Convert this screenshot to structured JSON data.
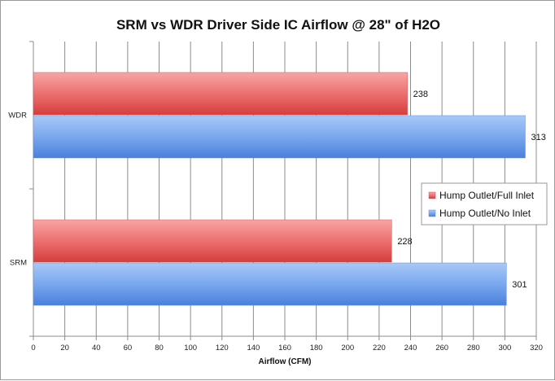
{
  "chart_data": {
    "type": "bar",
    "orientation": "horizontal",
    "title": "SRM vs WDR Driver Side IC Airflow @ 28\" of H2O",
    "xlabel": "Airflow (CFM)",
    "ylabel": "",
    "categories": [
      "WDR",
      "SRM"
    ],
    "series": [
      {
        "name": "Hump Outlet/Full Inlet",
        "values": [
          238,
          228
        ],
        "color": "#e05050"
      },
      {
        "name": "Hump Outlet/No Inlet",
        "values": [
          313,
          301
        ],
        "color": "#5a8fe0"
      }
    ],
    "xlim": [
      0,
      320
    ],
    "xticks": [
      "0",
      "20",
      "40",
      "60",
      "80",
      "100",
      "120",
      "140",
      "160",
      "180",
      "200",
      "220",
      "240",
      "260",
      "280",
      "300",
      "320"
    ],
    "grid": "vertical",
    "legend_position": "right"
  }
}
